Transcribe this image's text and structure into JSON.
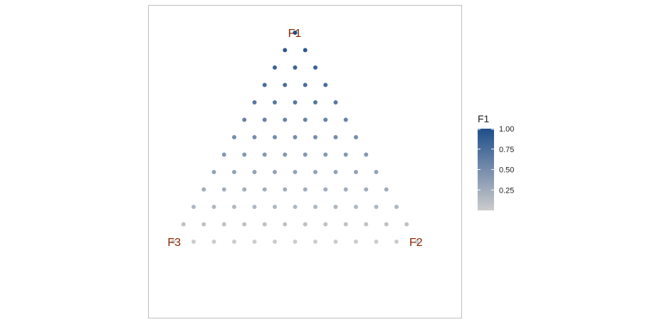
{
  "chart_data": {
    "type": "scatter",
    "coordinate_system": "ternary",
    "grid_divisions": 12,
    "vertices": {
      "top": "F1",
      "right": "F2",
      "left": "F3"
    },
    "color_variable": "F1",
    "points": "all compositions (F1, F2, F3) on a 1/12 grid with F1 + F2 + F3 = 1",
    "legend": {
      "title": "F1",
      "ticks": [
        "0.25",
        "0.50",
        "0.75",
        "1.00"
      ],
      "tick_values": [
        0.25,
        0.5,
        0.75,
        1.0
      ],
      "range": [
        0,
        1
      ],
      "placement": "right"
    },
    "colors": {
      "low": "#cccccc",
      "high": "#1f4e8a",
      "vertex_label": "#8b2500",
      "panel_border": "#bfbfbf"
    },
    "grid": false
  }
}
